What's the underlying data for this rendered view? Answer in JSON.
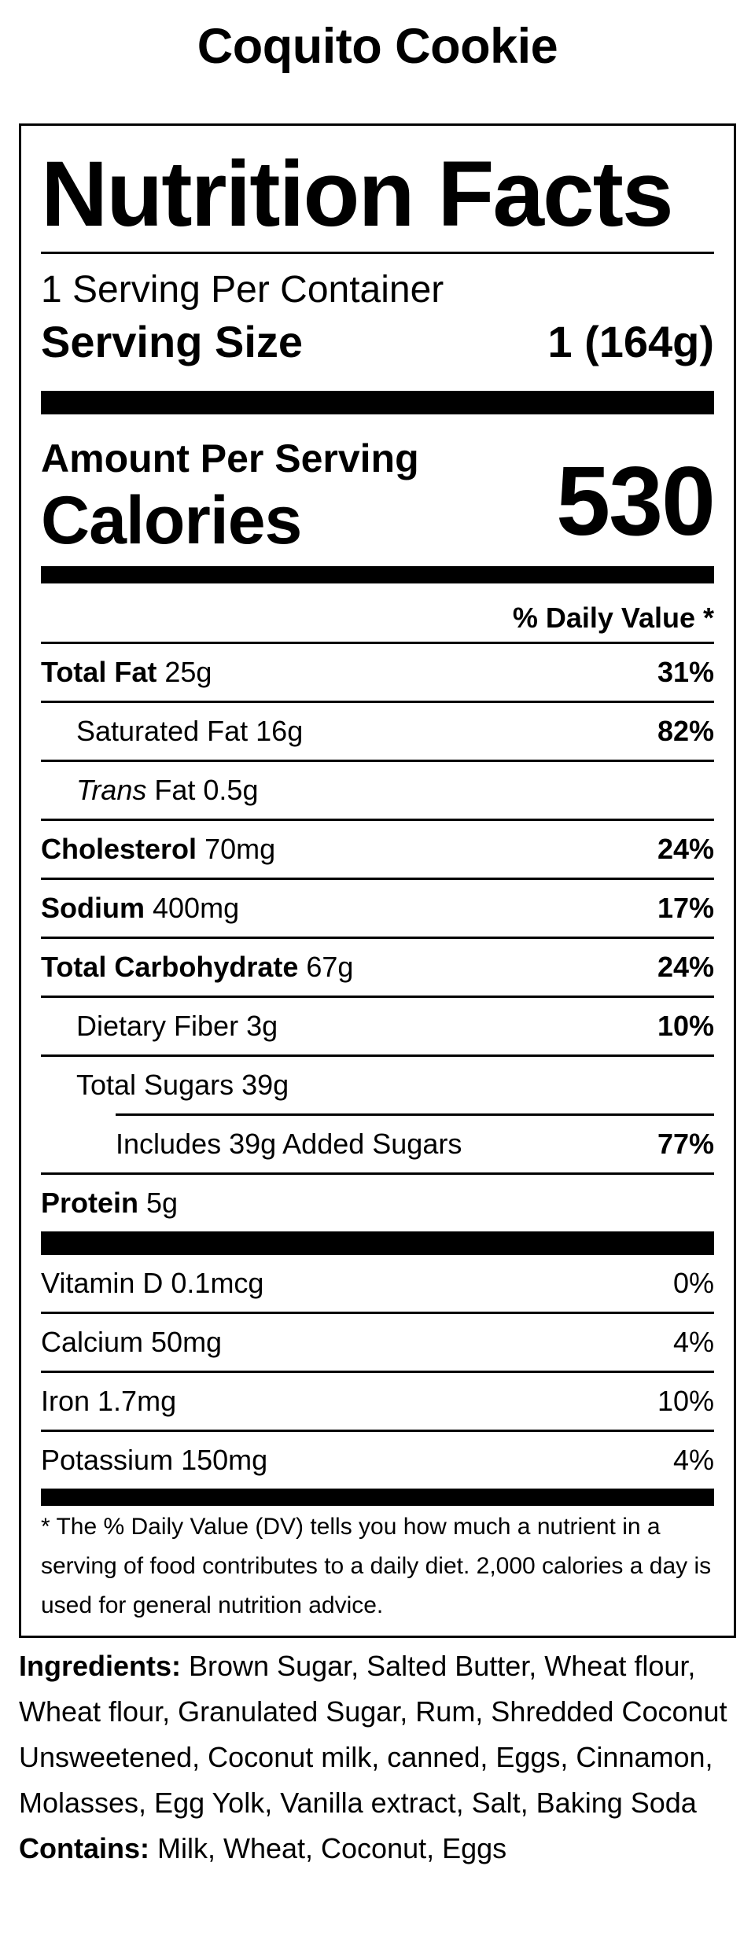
{
  "title": "Coquito Cookie",
  "label": {
    "heading": "Nutrition Facts",
    "servings_per_container": "1 Serving Per Container",
    "serving_size_label": "Serving Size",
    "serving_size_value": "1 (164g)",
    "amount_per_serving": "Amount Per Serving",
    "calories_label": "Calories",
    "calories_value": "530",
    "daily_value_header": "% Daily Value *",
    "nutrients": [
      {
        "name": "Total Fat",
        "amount": "25g",
        "dv": "31%"
      },
      {
        "name": "Saturated Fat",
        "amount": "16g",
        "dv": "82%"
      },
      {
        "name_italic": "Trans",
        "name_rest": "Fat",
        "amount": "0.5g",
        "dv": ""
      },
      {
        "name": "Cholesterol",
        "amount": "70mg",
        "dv": "24%"
      },
      {
        "name": "Sodium",
        "amount": "400mg",
        "dv": "17%"
      },
      {
        "name": "Total Carbohydrate",
        "amount": "67g",
        "dv": "24%"
      },
      {
        "name": "Dietary Fiber",
        "amount": "3g",
        "dv": "10%"
      },
      {
        "name": "Total Sugars",
        "amount": "39g",
        "dv": ""
      },
      {
        "text": "Includes 39g Added Sugars",
        "dv": "77%"
      },
      {
        "name": "Protein",
        "amount": "5g",
        "dv": ""
      }
    ],
    "vitamins": [
      {
        "text": "Vitamin D 0.1mcg",
        "dv": "0%"
      },
      {
        "text": "Calcium 50mg",
        "dv": "4%"
      },
      {
        "text": "Iron 1.7mg",
        "dv": "10%"
      },
      {
        "text": "Potassium 150mg",
        "dv": "4%"
      }
    ],
    "footnote": "* The % Daily Value (DV) tells you how much a nutrient in a serving of food contributes to a daily diet. 2,000 calories a day is used for general nutrition advice."
  },
  "ingredients": {
    "label": "Ingredients:",
    "text": " Brown Sugar, Salted Butter, Wheat flour, Wheat flour, Granulated Sugar, Rum, Shredded Coconut Unsweetened, Coconut milk, canned, Eggs, Cinnamon, Molasses, Egg Yolk, Vanilla extract, Salt, Baking Soda"
  },
  "contains": {
    "label": "Contains:",
    "text": " Milk, Wheat, Coconut, Eggs"
  }
}
